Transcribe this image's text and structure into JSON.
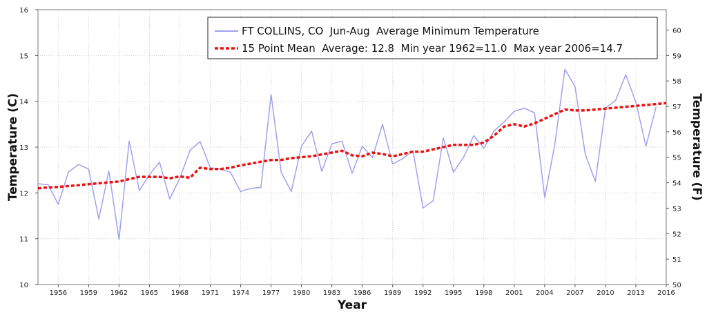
{
  "chart_data": {
    "type": "line",
    "xlabel": "Year",
    "ylabel": "Temperature (C)",
    "ylabel_right": "Temperature (F)",
    "xlim": [
      1954,
      2016
    ],
    "ylim": [
      10,
      16
    ],
    "ylim_right": [
      50,
      60.8
    ],
    "x_ticks": [
      "1956",
      "1959",
      "1962",
      "1965",
      "1968",
      "1971",
      "1974",
      "1977",
      "1980",
      "1983",
      "1986",
      "1989",
      "1992",
      "1995",
      "1998",
      "2001",
      "2004",
      "2007",
      "2010",
      "2013",
      "2016"
    ],
    "y_ticks": [
      "10",
      "11",
      "12",
      "13",
      "14",
      "15",
      "16"
    ],
    "y_ticks_right": [
      "50",
      "51",
      "52",
      "53",
      "54",
      "55",
      "56",
      "57",
      "58",
      "59",
      "60"
    ],
    "grid": true,
    "legend_placement": "top-right",
    "series": [
      {
        "name": "FT COLLINS, CO  Jun-Aug  Average Minimum Temperature",
        "color": "#a0a0f0",
        "style": "solid",
        "x": [
          1954,
          1955,
          1956,
          1957,
          1958,
          1959,
          1960,
          1961,
          1962,
          1963,
          1964,
          1965,
          1966,
          1967,
          1968,
          1969,
          1970,
          1971,
          1972,
          1973,
          1974,
          1975,
          1976,
          1977,
          1978,
          1979,
          1980,
          1981,
          1982,
          1983,
          1984,
          1985,
          1986,
          1987,
          1988,
          1989,
          1990,
          1991,
          1992,
          1993,
          1994,
          1995,
          1996,
          1997,
          1998,
          1999,
          2000,
          2001,
          2002,
          2003,
          2004,
          2005,
          2006,
          2007,
          2008,
          2009,
          2010,
          2011,
          2012,
          2013,
          2014,
          2015
        ],
        "values": [
          12.2,
          12.18,
          11.75,
          12.45,
          12.62,
          12.52,
          11.43,
          12.48,
          10.98,
          13.13,
          12.05,
          12.4,
          12.67,
          11.87,
          12.32,
          12.93,
          13.12,
          12.55,
          12.52,
          12.45,
          12.03,
          12.1,
          12.12,
          14.15,
          12.45,
          12.03,
          13.02,
          13.35,
          12.47,
          13.07,
          13.13,
          12.43,
          13.02,
          12.77,
          13.5,
          12.63,
          12.75,
          12.92,
          11.67,
          11.83,
          13.2,
          12.45,
          12.78,
          13.25,
          12.98,
          13.35,
          13.55,
          13.78,
          13.85,
          13.75,
          11.9,
          13.05,
          14.7,
          14.32,
          12.85,
          12.25,
          13.85,
          14.02,
          14.58,
          13.98,
          13.02,
          13.88
        ]
      },
      {
        "name": "15 Point Mean  Average: 12.8  Min year 1962=11.0  Max year 2006=14.7",
        "color": "#ee1111",
        "style": "dashed",
        "x": [
          1954,
          1955,
          1956,
          1957,
          1958,
          1959,
          1960,
          1961,
          1962,
          1963,
          1964,
          1965,
          1966,
          1967,
          1968,
          1969,
          1970,
          1971,
          1972,
          1973,
          1974,
          1975,
          1976,
          1977,
          1978,
          1979,
          1980,
          1981,
          1982,
          1983,
          1984,
          1985,
          1986,
          1987,
          1988,
          1989,
          1990,
          1991,
          1992,
          1993,
          1994,
          1995,
          1996,
          1997,
          1998,
          1999,
          2000,
          2001,
          2002,
          2003,
          2004,
          2005,
          2006,
          2007,
          2008,
          2009,
          2010,
          2011,
          2012,
          2013,
          2014,
          2015,
          2016
        ],
        "values": [
          12.1,
          12.12,
          12.13,
          12.15,
          12.17,
          12.19,
          12.21,
          12.23,
          12.25,
          12.3,
          12.35,
          12.35,
          12.35,
          12.32,
          12.36,
          12.33,
          12.55,
          12.52,
          12.52,
          12.55,
          12.6,
          12.64,
          12.68,
          12.72,
          12.72,
          12.76,
          12.78,
          12.8,
          12.84,
          12.88,
          12.92,
          12.82,
          12.8,
          12.88,
          12.85,
          12.8,
          12.85,
          12.9,
          12.9,
          12.95,
          13.0,
          13.05,
          13.05,
          13.05,
          13.1,
          13.25,
          13.45,
          13.5,
          13.45,
          13.52,
          13.62,
          13.72,
          13.82,
          13.8,
          13.8,
          13.82,
          13.84,
          13.86,
          13.88,
          13.9,
          13.92,
          13.94,
          13.96
        ]
      }
    ]
  }
}
